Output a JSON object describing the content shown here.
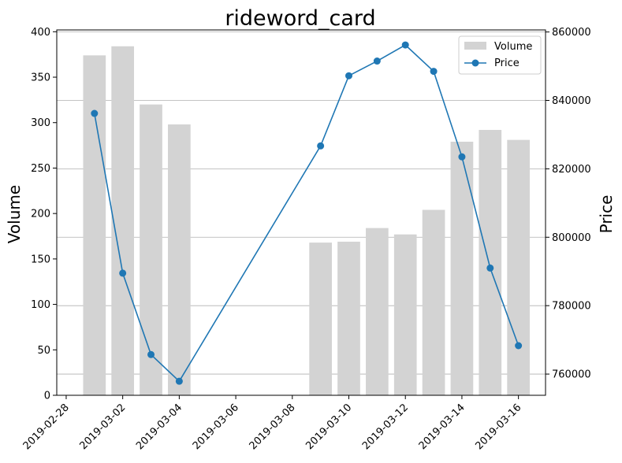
{
  "chart_data": {
    "type": "bar+line",
    "title": "rideword_card",
    "xlabel": "",
    "ylabel_left": "Volume",
    "ylabel_right": "Price",
    "dates": [
      "2019-03-01",
      "2019-03-02",
      "2019-03-03",
      "2019-03-04",
      "2019-03-09",
      "2019-03-10",
      "2019-03-11",
      "2019-03-12",
      "2019-03-13",
      "2019-03-14",
      "2019-03-15",
      "2019-03-16"
    ],
    "series": [
      {
        "name": "Volume",
        "kind": "bar",
        "axis": "left",
        "color": "#d3d3d3",
        "values": [
          374,
          384,
          320,
          298,
          168,
          169,
          184,
          177,
          204,
          279,
          292,
          281
        ]
      },
      {
        "name": "Price",
        "kind": "line",
        "axis": "right",
        "color": "#1f77b4",
        "values": [
          836200,
          789500,
          765700,
          757900,
          826700,
          847200,
          851500,
          856200,
          848500,
          823500,
          791000,
          768300
        ]
      }
    ],
    "x_ticks": [
      "2019-02-28",
      "2019-03-02",
      "2019-03-04",
      "2019-03-06",
      "2019-03-08",
      "2019-03-10",
      "2019-03-12",
      "2019-03-14",
      "2019-03-16"
    ],
    "y_left_ticks": [
      "0",
      "50",
      "100",
      "150",
      "200",
      "250",
      "300",
      "350",
      "400"
    ],
    "y_right_ticks": [
      "760000",
      "780000",
      "800000",
      "820000",
      "840000",
      "860000"
    ],
    "ylim_left": [
      0,
      402
    ],
    "ylim_right": [
      753800,
      860600
    ],
    "xlim": [
      "2019-02-27T16:00",
      "2019-03-16T23:00"
    ],
    "grid": "horizontal at right-axis ticks",
    "legend_position": "top-right",
    "x_tick_rotation": "45deg"
  }
}
